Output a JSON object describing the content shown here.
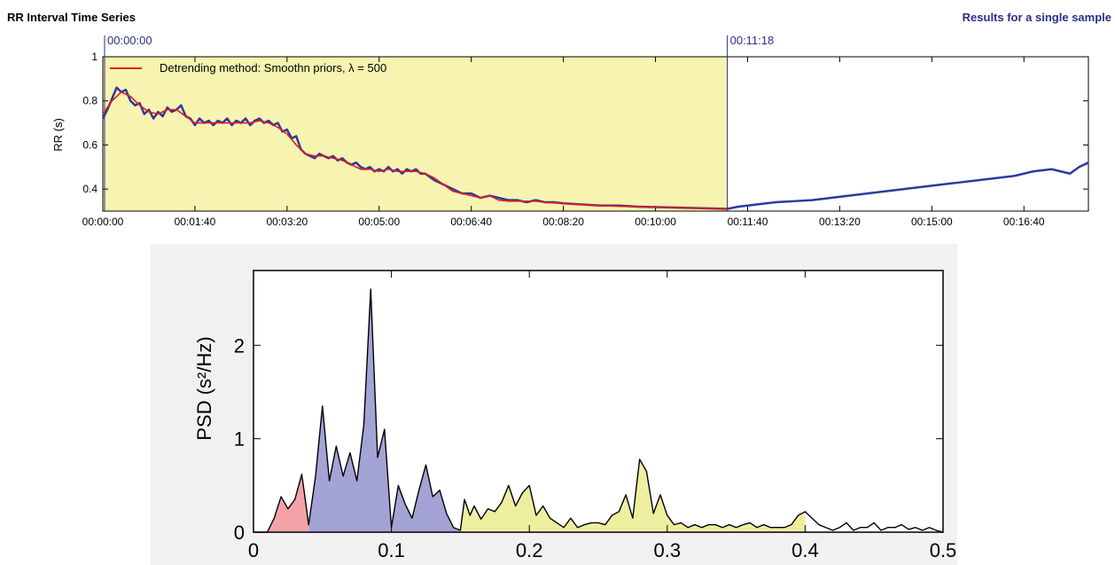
{
  "header": {
    "left_title": "RR Interval Time Series",
    "right_title": "Results for a single sample"
  },
  "colors": {
    "highlight": "#f7f3b0",
    "raw_series": "#2b3a9e",
    "trend_line": "#e11d1d",
    "marker": "#2b2f86",
    "vlf_band": "#f3a3a8",
    "lf_band": "#a3a3d6",
    "hf_band": "#eeeea0"
  },
  "chart_data": [
    {
      "type": "line",
      "ylabel": "RR (s)",
      "ylim": [
        0.3,
        1.0
      ],
      "yticks": [
        0.4,
        0.6,
        0.8,
        1
      ],
      "ytick_labels": [
        "0.4",
        "0.6",
        "0.8",
        "1"
      ],
      "xlim": [
        0,
        1070
      ],
      "xticks": [
        0,
        100,
        200,
        300,
        400,
        500,
        600,
        700,
        800,
        900,
        1000
      ],
      "xtick_labels": [
        "00:00:00",
        "00:01:40",
        "00:03:20",
        "00:05:00",
        "00:06:40",
        "00:08:20",
        "00:10:00",
        "00:11:40",
        "00:13:20",
        "00:15:00",
        "00:16:40"
      ],
      "highlight_range": [
        0,
        678
      ],
      "markers": [
        {
          "x": 0,
          "label": "00:00:00"
        },
        {
          "x": 678,
          "label": "00:11:18"
        }
      ],
      "legend": {
        "label": "Detrending method: Smoothn priors, λ = 500",
        "placement": "top-left"
      },
      "series": [
        {
          "name": "Detrending method: Smoothn priors, λ = 500",
          "role": "trend",
          "x": [
            0,
            10,
            20,
            30,
            40,
            50,
            60,
            70,
            80,
            90,
            100,
            110,
            120,
            130,
            140,
            150,
            160,
            170,
            180,
            190,
            200,
            210,
            220,
            230,
            240,
            250,
            260,
            270,
            280,
            290,
            300,
            310,
            320,
            330,
            340,
            350,
            360,
            370,
            380,
            390,
            400,
            410,
            420,
            430,
            440,
            450,
            460,
            470,
            480,
            490,
            500,
            520,
            540,
            560,
            580,
            600,
            620,
            640,
            660,
            678
          ],
          "y": [
            0.74,
            0.8,
            0.84,
            0.82,
            0.78,
            0.75,
            0.74,
            0.76,
            0.76,
            0.73,
            0.7,
            0.7,
            0.7,
            0.7,
            0.7,
            0.7,
            0.7,
            0.71,
            0.7,
            0.68,
            0.65,
            0.6,
            0.56,
            0.55,
            0.55,
            0.54,
            0.53,
            0.51,
            0.49,
            0.49,
            0.48,
            0.49,
            0.48,
            0.48,
            0.48,
            0.47,
            0.45,
            0.42,
            0.39,
            0.38,
            0.37,
            0.36,
            0.37,
            0.35,
            0.345,
            0.345,
            0.345,
            0.345,
            0.34,
            0.337,
            0.335,
            0.33,
            0.325,
            0.322,
            0.32,
            0.318,
            0.316,
            0.314,
            0.312,
            0.31
          ]
        },
        {
          "name": "RR",
          "role": "raw",
          "x": [
            0,
            5,
            10,
            15,
            20,
            25,
            30,
            35,
            40,
            45,
            50,
            55,
            60,
            65,
            70,
            75,
            80,
            85,
            90,
            95,
            100,
            105,
            110,
            115,
            120,
            125,
            130,
            135,
            140,
            145,
            150,
            155,
            160,
            165,
            170,
            175,
            180,
            185,
            190,
            195,
            200,
            205,
            210,
            215,
            220,
            225,
            230,
            235,
            240,
            245,
            250,
            255,
            260,
            265,
            270,
            275,
            280,
            285,
            290,
            295,
            300,
            305,
            310,
            315,
            320,
            325,
            330,
            335,
            340,
            345,
            350,
            360,
            370,
            380,
            390,
            400,
            410,
            420,
            430,
            440,
            450,
            460,
            470,
            480,
            490,
            500,
            520,
            540,
            560,
            580,
            600,
            620,
            640,
            660,
            678,
            690,
            710,
            730,
            750,
            770,
            790,
            810,
            830,
            850,
            870,
            890,
            910,
            930,
            950,
            970,
            990,
            1010,
            1030,
            1050,
            1060,
            1070
          ],
          "y": [
            0.72,
            0.76,
            0.81,
            0.86,
            0.84,
            0.85,
            0.8,
            0.78,
            0.79,
            0.74,
            0.76,
            0.72,
            0.75,
            0.73,
            0.77,
            0.75,
            0.76,
            0.78,
            0.73,
            0.72,
            0.69,
            0.72,
            0.7,
            0.71,
            0.69,
            0.71,
            0.7,
            0.72,
            0.69,
            0.71,
            0.7,
            0.72,
            0.69,
            0.71,
            0.72,
            0.7,
            0.71,
            0.69,
            0.7,
            0.66,
            0.67,
            0.63,
            0.64,
            0.58,
            0.56,
            0.55,
            0.54,
            0.56,
            0.55,
            0.54,
            0.55,
            0.53,
            0.54,
            0.52,
            0.51,
            0.52,
            0.5,
            0.49,
            0.5,
            0.48,
            0.49,
            0.48,
            0.5,
            0.48,
            0.49,
            0.47,
            0.49,
            0.48,
            0.49,
            0.47,
            0.47,
            0.44,
            0.42,
            0.4,
            0.38,
            0.38,
            0.36,
            0.37,
            0.36,
            0.35,
            0.35,
            0.34,
            0.35,
            0.34,
            0.34,
            0.335,
            0.33,
            0.325,
            0.325,
            0.32,
            0.318,
            0.316,
            0.314,
            0.312,
            0.31,
            0.32,
            0.33,
            0.34,
            0.345,
            0.35,
            0.36,
            0.37,
            0.38,
            0.39,
            0.4,
            0.41,
            0.42,
            0.43,
            0.44,
            0.45,
            0.46,
            0.48,
            0.49,
            0.47,
            0.5,
            0.52
          ]
        }
      ]
    },
    {
      "type": "area",
      "ylabel": "PSD (s²/Hz)",
      "xlim": [
        0,
        0.5
      ],
      "ylim": [
        0,
        2.8
      ],
      "xticks": [
        0,
        0.1,
        0.2,
        0.3,
        0.4,
        0.5
      ],
      "xtick_labels": [
        "0",
        "0.1",
        "0.2",
        "0.3",
        "0.4",
        "0.5"
      ],
      "yticks": [
        0,
        1,
        2
      ],
      "ytick_labels": [
        "0",
        "1",
        "2"
      ],
      "bands": [
        [
          0,
          0.04
        ],
        [
          0.04,
          0.15
        ],
        [
          0.15,
          0.4
        ]
      ],
      "series": [
        {
          "x": [
            0.01,
            0.015,
            0.02,
            0.025,
            0.03,
            0.035,
            0.038,
            0.04,
            0.045,
            0.05,
            0.055,
            0.06,
            0.065,
            0.07,
            0.075,
            0.08,
            0.085,
            0.09,
            0.095,
            0.1,
            0.105,
            0.11,
            0.115,
            0.12,
            0.125,
            0.13,
            0.135,
            0.14,
            0.145,
            0.15,
            0.153,
            0.157,
            0.16,
            0.165,
            0.17,
            0.175,
            0.18,
            0.185,
            0.19,
            0.195,
            0.2,
            0.205,
            0.21,
            0.215,
            0.22,
            0.225,
            0.23,
            0.235,
            0.24,
            0.245,
            0.25,
            0.255,
            0.26,
            0.265,
            0.27,
            0.275,
            0.28,
            0.285,
            0.29,
            0.295,
            0.3,
            0.305,
            0.31,
            0.315,
            0.32,
            0.325,
            0.33,
            0.335,
            0.34,
            0.345,
            0.35,
            0.355,
            0.36,
            0.365,
            0.37,
            0.375,
            0.38,
            0.385,
            0.39,
            0.395,
            0.4,
            0.405,
            0.41,
            0.415,
            0.42,
            0.425,
            0.43,
            0.435,
            0.44,
            0.445,
            0.45,
            0.455,
            0.46,
            0.465,
            0.47,
            0.475,
            0.48,
            0.485,
            0.49,
            0.495,
            0.5
          ],
          "y": [
            0,
            0.15,
            0.38,
            0.25,
            0.35,
            0.62,
            0.3,
            0.08,
            0.6,
            1.35,
            0.55,
            0.92,
            0.6,
            0.85,
            0.55,
            1.15,
            2.6,
            0.8,
            1.1,
            0.05,
            0.5,
            0.3,
            0.15,
            0.45,
            0.72,
            0.38,
            0.45,
            0.2,
            0.05,
            0.02,
            0.35,
            0.18,
            0.28,
            0.14,
            0.25,
            0.22,
            0.32,
            0.5,
            0.28,
            0.42,
            0.5,
            0.18,
            0.28,
            0.15,
            0.1,
            0.05,
            0.15,
            0.05,
            0.08,
            0.1,
            0.1,
            0.08,
            0.18,
            0.22,
            0.4,
            0.15,
            0.78,
            0.65,
            0.2,
            0.4,
            0.18,
            0.08,
            0.1,
            0.05,
            0.08,
            0.05,
            0.08,
            0.08,
            0.05,
            0.08,
            0.05,
            0.08,
            0.1,
            0.05,
            0.08,
            0.05,
            0.05,
            0.05,
            0.08,
            0.18,
            0.22,
            0.15,
            0.08,
            0.05,
            0.02,
            0.05,
            0.1,
            0.02,
            0.05,
            0.05,
            0.1,
            0.02,
            0.05,
            0.05,
            0.08,
            0.03,
            0.05,
            0.02,
            0.05,
            0.02,
            0.0
          ]
        }
      ]
    }
  ]
}
